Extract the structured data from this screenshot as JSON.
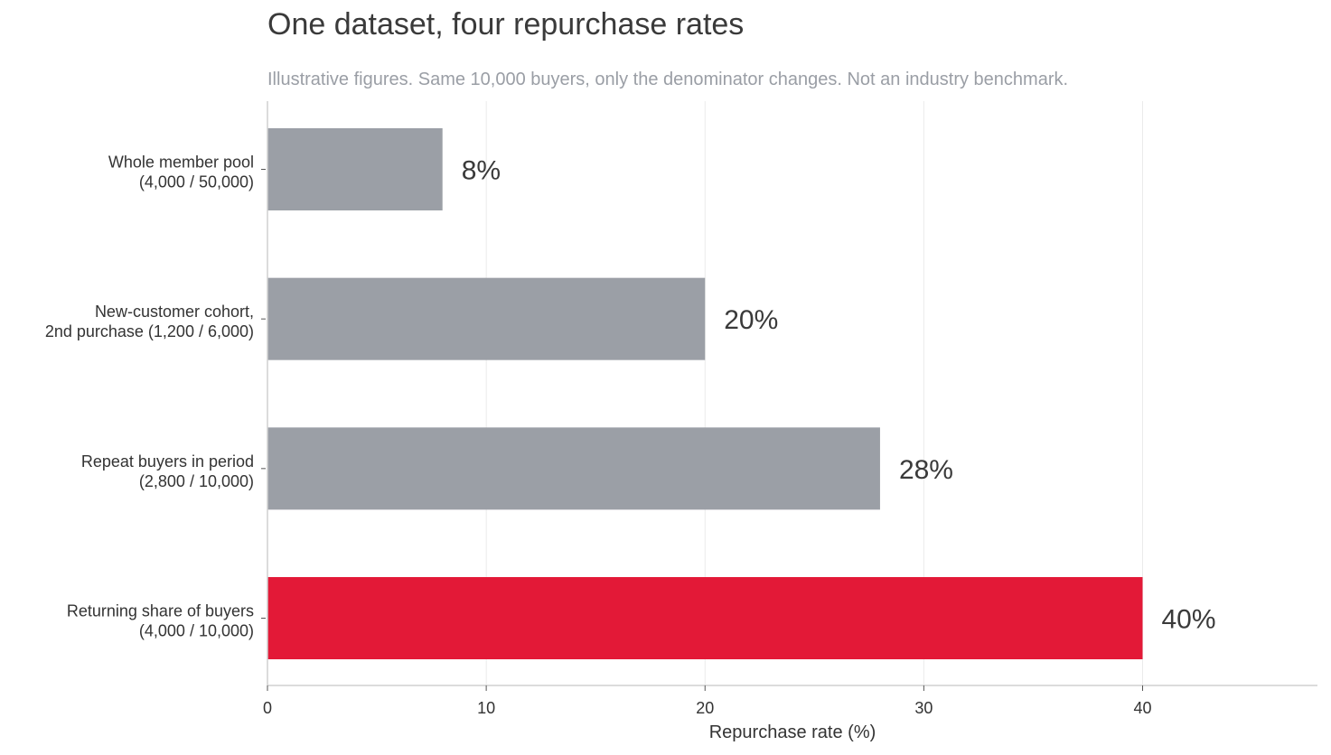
{
  "chart_data": {
    "type": "bar",
    "orientation": "horizontal",
    "title": "One dataset, four repurchase rates",
    "subtitle": "Illustrative figures. Same 10,000 buyers, only the denominator changes. Not an industry benchmark.",
    "categories": [
      [
        "Whole member pool",
        "(4,000 / 50,000)"
      ],
      [
        "New-customer cohort,",
        "2nd purchase (1,200 / 6,000)"
      ],
      [
        "Repeat buyers in period",
        "(2,800 / 10,000)"
      ],
      [
        "Returning share of buyers",
        "(4,000 / 10,000)"
      ]
    ],
    "values": [
      8,
      20,
      28,
      40
    ],
    "value_labels": [
      "8%",
      "20%",
      "28%",
      "40%"
    ],
    "bar_colors": [
      "#9b9fa6",
      "#9b9fa6",
      "#9b9fa6",
      "#e31937"
    ],
    "xlabel": "Repurchase rate (%)",
    "ylabel": "",
    "xlim": [
      0,
      48
    ],
    "xticks": [
      0,
      10,
      20,
      30,
      40
    ],
    "grid": "vertical",
    "legend": "none"
  }
}
